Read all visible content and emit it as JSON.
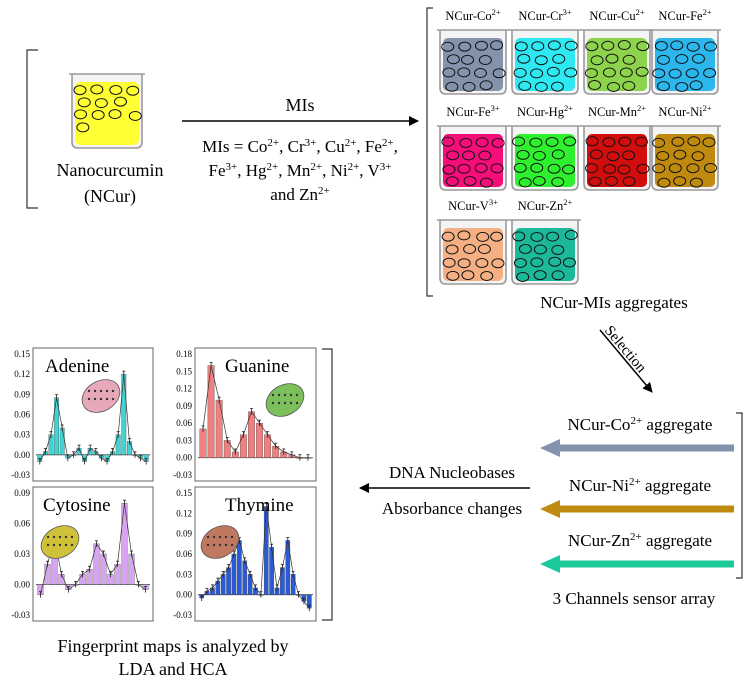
{
  "source": {
    "name": "Nanocurcumin",
    "abbr": "(NCur)",
    "beaker_color": "#ffff33"
  },
  "mis_arrow": {
    "label": "MIs",
    "list_line1": "MIs = Co2+, Cr3+, Cu2+, Fe2+,",
    "list_line2": "Fe3+, Hg2+, Mn2+, Ni2+, V3+",
    "list_line3": "and Zn2+"
  },
  "beakers": [
    {
      "label": "NCur-Co",
      "charge": "2+",
      "color": "#8393ab"
    },
    {
      "label": "NCur-Cr",
      "charge": "3+",
      "color": "#2ee9f2"
    },
    {
      "label": "NCur-Cu",
      "charge": "2+",
      "color": "#8ed34c"
    },
    {
      "label": "NCur-Fe",
      "charge": "2+",
      "color": "#2bb7ec"
    },
    {
      "label": "NCur-Fe",
      "charge": "3+",
      "color": "#f50d7a"
    },
    {
      "label": "NCur-Hg",
      "charge": "2+",
      "color": "#2ef02e"
    },
    {
      "label": "NCur-Mn",
      "charge": "2+",
      "color": "#d10d0d"
    },
    {
      "label": "NCur-Ni",
      "charge": "2+",
      "color": "#c08a0e"
    },
    {
      "label": "NCur-V",
      "charge": "3+",
      "color": "#f4b083"
    },
    {
      "label": "NCur-Zn",
      "charge": "2+",
      "color": "#1cb89a"
    }
  ],
  "aggregates_caption": "NCur-MIs aggregates",
  "selection_label": "Selection",
  "sensor_channels": [
    {
      "label": "NCur-Co",
      "charge": "2+",
      "suffix": " aggregate",
      "color": "#8393ab"
    },
    {
      "label": "NCur-Ni",
      "charge": "2+",
      "suffix": " aggregate",
      "color": "#c08a0e"
    },
    {
      "label": "NCur-Zn",
      "charge": "2+",
      "suffix": " aggregate",
      "color": "#1cc99a"
    }
  ],
  "sensor_caption": "3 Channels sensor array",
  "middle_arrow": {
    "line1": "DNA Nucleobases",
    "line2": "Absorbance changes"
  },
  "fingerprint_caption": {
    "line1": "Fingerprint maps is analyzed by",
    "line2": "LDA and HCA"
  },
  "chart_data": [
    {
      "type": "bar",
      "title": "Adenine",
      "color": "#3fd3d3",
      "blob_color": "#e7a9b9",
      "ylim": [
        -0.03,
        0.15
      ],
      "yticks": [
        "0.15",
        "0.12",
        "0.09",
        "0.06",
        "0.03",
        "0.00",
        "-0.03"
      ],
      "values": [
        -0.01,
        0.005,
        0.03,
        0.085,
        0.04,
        -0.005,
        0.0,
        0.01,
        -0.01,
        0.01,
        0.005,
        -0.005,
        -0.01,
        0.005,
        0.03,
        0.12,
        0.02,
        0.0,
        -0.005,
        -0.01
      ]
    },
    {
      "type": "bar",
      "title": "Guanine",
      "color": "#f08080",
      "blob_color": "#7bc05a",
      "ylim": [
        -0.03,
        0.18
      ],
      "yticks": [
        "0.18",
        "0.15",
        "0.12",
        "0.09",
        "0.06",
        "0.03",
        "0.00",
        "-0.03"
      ],
      "values": [
        0.05,
        0.16,
        0.1,
        0.03,
        0.01,
        0.04,
        0.08,
        0.06,
        0.04,
        0.02,
        0.01,
        0.005,
        0.0,
        0.0
      ]
    },
    {
      "type": "bar",
      "title": "Cytosine",
      "color": "#d8a3f0",
      "blob_color": "#cfc23a",
      "ylim": [
        -0.03,
        0.09
      ],
      "yticks": [
        "0.09",
        "0.06",
        "0.03",
        "0.00",
        "-0.03"
      ],
      "values": [
        -0.01,
        0.02,
        0.045,
        0.01,
        -0.005,
        0.0,
        0.01,
        0.015,
        0.04,
        0.03,
        0.01,
        0.02,
        0.08,
        0.03,
        0.0,
        -0.005
      ]
    },
    {
      "type": "bar",
      "title": "Thymine",
      "color": "#2a5ad6",
      "blob_color": "#c07860",
      "ylim": [
        -0.03,
        0.15
      ],
      "yticks": [
        "0.15",
        "0.12",
        "0.09",
        "0.06",
        "0.03",
        "0.00",
        "-0.03"
      ],
      "values": [
        -0.005,
        0.005,
        0.01,
        0.02,
        0.03,
        0.04,
        0.06,
        0.08,
        0.05,
        0.03,
        0.01,
        0.0,
        0.13,
        0.07,
        0.01,
        0.04,
        0.08,
        0.03,
        0.0,
        -0.01,
        -0.02
      ]
    }
  ]
}
